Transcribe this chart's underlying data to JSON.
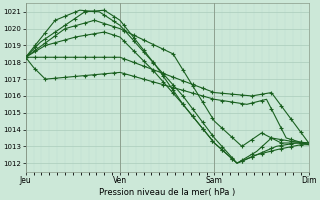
{
  "xlabel": "Pression niveau de la mer( hPa )",
  "bg_color": "#cce8d8",
  "grid_major_color": "#aaccbb",
  "grid_minor_color": "#bbddd0",
  "line_color": "#1a6020",
  "ylim": [
    1011.5,
    1021.5
  ],
  "yticks": [
    1012,
    1013,
    1014,
    1015,
    1016,
    1017,
    1018,
    1019,
    1020,
    1021
  ],
  "day_labels": [
    "Jeu",
    "Ven",
    "Sam",
    "Dim"
  ],
  "day_positions": [
    0,
    96,
    192,
    288
  ],
  "series_waypoints": [
    {
      "pts_x": [
        0,
        96,
        192,
        230,
        250,
        288
      ],
      "pts_y": [
        1018.3,
        1018.3,
        1016.2,
        1016.0,
        1016.2,
        1013.2
      ]
    },
    {
      "pts_x": [
        0,
        8,
        20,
        96,
        192,
        225,
        245,
        265,
        288
      ],
      "pts_y": [
        1018.3,
        1017.7,
        1017.0,
        1017.4,
        1015.8,
        1015.5,
        1015.8,
        1013.5,
        1013.1
      ]
    },
    {
      "pts_x": [
        0,
        40,
        70,
        96,
        150,
        192,
        220,
        240,
        260,
        288
      ],
      "pts_y": [
        1018.3,
        1020.0,
        1020.5,
        1020.0,
        1018.5,
        1014.5,
        1013.0,
        1013.8,
        1013.2,
        1013.2
      ]
    },
    {
      "pts_x": [
        0,
        30,
        55,
        75,
        96,
        160,
        192,
        215,
        235,
        255,
        280,
        288
      ],
      "pts_y": [
        1018.3,
        1020.5,
        1021.1,
        1021.0,
        1020.2,
        1016.0,
        1013.5,
        1012.0,
        1012.5,
        1012.8,
        1013.1,
        1013.1
      ]
    },
    {
      "pts_x": [
        0,
        20,
        50,
        80,
        96,
        130,
        160,
        192,
        215,
        235,
        255,
        275,
        288
      ],
      "pts_y": [
        1018.3,
        1019.0,
        1019.5,
        1019.8,
        1019.5,
        1017.5,
        1015.5,
        1013.2,
        1012.0,
        1012.5,
        1013.0,
        1013.2,
        1013.2
      ]
    },
    {
      "pts_x": [
        0,
        15,
        40,
        60,
        80,
        96,
        130,
        160,
        192,
        215,
        235,
        250,
        270,
        288
      ],
      "pts_y": [
        1018.3,
        1019.2,
        1020.2,
        1021.0,
        1021.1,
        1020.5,
        1018.0,
        1015.5,
        1013.2,
        1012.0,
        1012.7,
        1013.5,
        1013.3,
        1013.2
      ]
    }
  ]
}
